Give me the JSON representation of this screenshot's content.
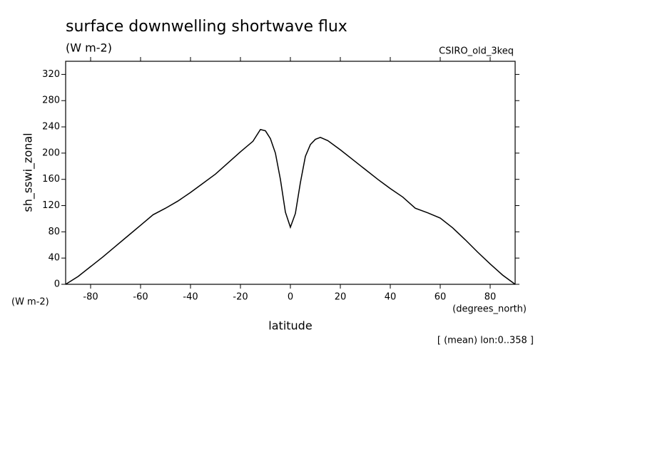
{
  "chart_data": {
    "type": "line",
    "title": "surface downwelling shortwave flux",
    "units": "(W m-2)",
    "dataset": "CSIRO_old_3keq",
    "y_label": "sh_sswi_zonal",
    "y_units": "(W m-2)",
    "x_units": "(degrees_north)",
    "x_label": "latitude",
    "note": "[ (mean) lon:0..358 ]",
    "x": [
      -90,
      -85,
      -80,
      -75,
      -70,
      -65,
      -60,
      -55,
      -50,
      -45,
      -40,
      -35,
      -30,
      -25,
      -20,
      -15,
      -12,
      -10,
      -8,
      -6,
      -4,
      -2,
      0,
      2,
      4,
      6,
      8,
      10,
      12,
      15,
      20,
      25,
      30,
      35,
      40,
      45,
      50,
      55,
      60,
      65,
      70,
      75,
      80,
      85,
      90
    ],
    "series": [
      {
        "color": "#000000",
        "values": [
          0,
          12,
          27,
          42,
          58,
          74,
          90,
          106,
          116,
          127,
          140,
          154,
          168,
          185,
          202,
          218,
          236,
          234,
          222,
          200,
          160,
          110,
          87,
          108,
          155,
          195,
          213,
          221,
          224,
          219,
          205,
          190,
          175,
          160,
          146,
          133,
          116,
          109,
          101,
          86,
          68,
          49,
          31,
          14,
          0
        ]
      }
    ],
    "xlim": [
      -90,
      90
    ],
    "ylim": [
      0,
      340
    ],
    "xticks": [
      -80,
      -60,
      -40,
      -20,
      0,
      20,
      40,
      60,
      80
    ],
    "yticks": [
      0,
      40,
      80,
      120,
      160,
      200,
      240,
      280,
      320
    ]
  }
}
